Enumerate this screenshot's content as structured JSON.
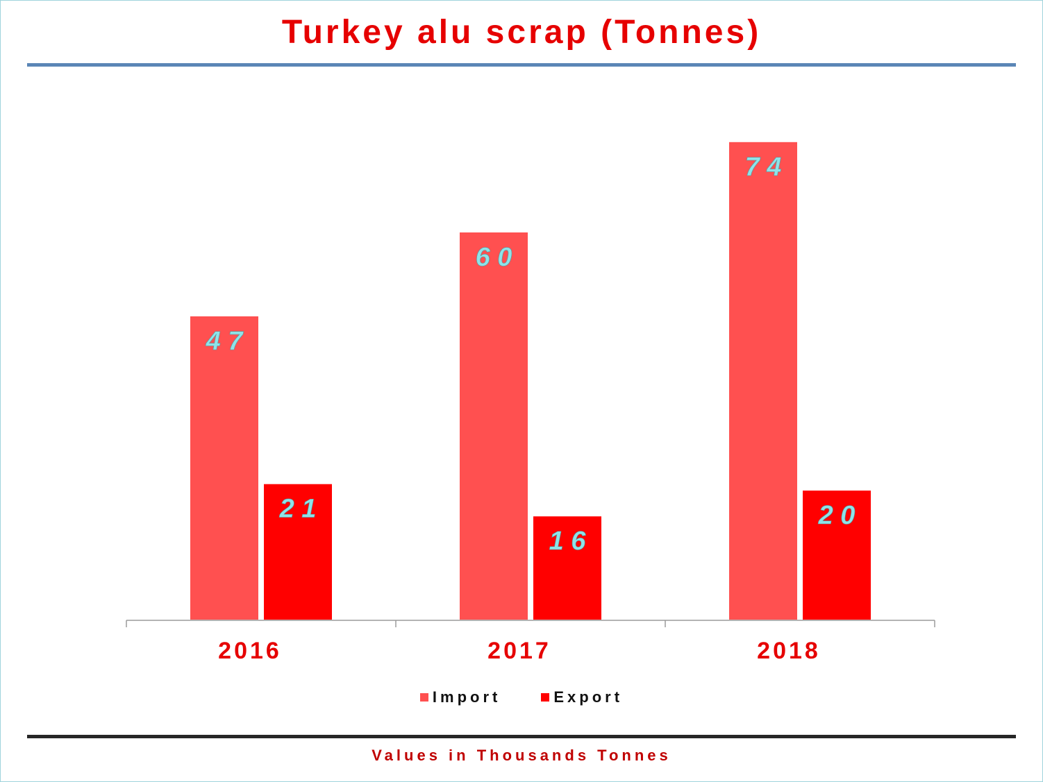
{
  "title": "Turkey alu scrap (Tonnes)",
  "footer_note": "Values in Thousands Tonnes",
  "colors": {
    "import": "#ff5050",
    "export": "#ff0000",
    "title": "#e60000",
    "data_label": "#8fe3e8",
    "category_label": "#e60000"
  },
  "chart_data": {
    "type": "bar",
    "title": "Turkey alu scrap (Tonnes)",
    "categories": [
      "2016",
      "2017",
      "2018"
    ],
    "series": [
      {
        "name": "Import",
        "values": [
          47,
          60,
          74
        ],
        "data_labels": [
          "4 7",
          "6 0",
          "7 4"
        ]
      },
      {
        "name": "Export",
        "values": [
          21,
          16,
          20
        ],
        "data_labels": [
          "2 1",
          "1 6",
          "2 0"
        ]
      }
    ],
    "xlabel": "",
    "ylabel": "",
    "ylim": [
      0,
      80
    ],
    "grid": false,
    "legend": "bottom"
  }
}
